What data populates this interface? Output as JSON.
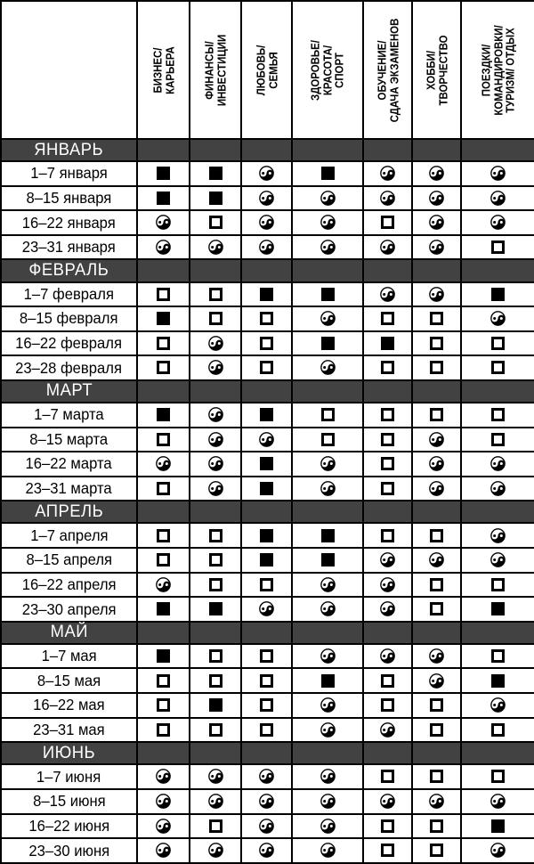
{
  "table": {
    "colors": {
      "month_band": "#424242",
      "border": "#000000",
      "month_text": "#ffffff",
      "cell_background": "#ffffff"
    },
    "columns": [
      {
        "id": "business",
        "lines": [
          "БИЗНЕС/",
          "КАРЬЕРА"
        ]
      },
      {
        "id": "finance",
        "lines": [
          "ФИНАНСЫ/",
          "ИНВЕСТИЦИИ"
        ]
      },
      {
        "id": "love",
        "lines": [
          "ЛЮБОВЬ/",
          "СЕМЬЯ"
        ]
      },
      {
        "id": "health",
        "lines": [
          "ЗДОРОВЬЕ/",
          "КРАСОТА/",
          "СПОРТ"
        ]
      },
      {
        "id": "education",
        "lines": [
          "ОБУЧЕНИЕ/",
          "СДАЧА ЭКЗАМЕНОВ"
        ]
      },
      {
        "id": "hobby",
        "lines": [
          "ХОББИ/",
          "ТВОРЧЕСТВО"
        ]
      },
      {
        "id": "trips",
        "lines": [
          "ПОЕЗДКИ/",
          "КОМАНДИРОВКИ/",
          "ТУРИЗМ/ ОТДЫХ"
        ]
      }
    ],
    "symbol_types": [
      "filled-square",
      "empty-square",
      "yin-yang"
    ],
    "sections": [
      {
        "month": "ЯНВАРЬ",
        "rows": [
          {
            "label": "1–7 января",
            "cells": [
              "filled-square",
              "filled-square",
              "yin-yang",
              "filled-square",
              "yin-yang",
              "yin-yang",
              "yin-yang"
            ]
          },
          {
            "label": "8–15 января",
            "cells": [
              "filled-square",
              "filled-square",
              "yin-yang",
              "yin-yang",
              "yin-yang",
              "yin-yang",
              "yin-yang"
            ]
          },
          {
            "label": "16–22 января",
            "cells": [
              "yin-yang",
              "empty-square",
              "yin-yang",
              "yin-yang",
              "empty-square",
              "yin-yang",
              "yin-yang"
            ]
          },
          {
            "label": "23–31 января",
            "cells": [
              "yin-yang",
              "yin-yang",
              "yin-yang",
              "yin-yang",
              "yin-yang",
              "yin-yang",
              "empty-square"
            ]
          }
        ]
      },
      {
        "month": "ФЕВРАЛЬ",
        "rows": [
          {
            "label": "1–7 февраля",
            "cells": [
              "empty-square",
              "empty-square",
              "filled-square",
              "filled-square",
              "yin-yang",
              "yin-yang",
              "filled-square"
            ]
          },
          {
            "label": "8–15 февраля",
            "cells": [
              "filled-square",
              "empty-square",
              "empty-square",
              "yin-yang",
              "empty-square",
              "empty-square",
              "yin-yang"
            ]
          },
          {
            "label": "16–22 февраля",
            "cells": [
              "empty-square",
              "yin-yang",
              "empty-square",
              "filled-square",
              "filled-square",
              "empty-square",
              "empty-square"
            ]
          },
          {
            "label": "23–28 февраля",
            "cells": [
              "empty-square",
              "yin-yang",
              "empty-square",
              "yin-yang",
              "empty-square",
              "empty-square",
              "empty-square"
            ]
          }
        ]
      },
      {
        "month": "МАРТ",
        "rows": [
          {
            "label": "1–7 марта",
            "cells": [
              "filled-square",
              "yin-yang",
              "filled-square",
              "empty-square",
              "empty-square",
              "empty-square",
              "empty-square"
            ]
          },
          {
            "label": "8–15 марта",
            "cells": [
              "empty-square",
              "yin-yang",
              "yin-yang",
              "empty-square",
              "empty-square",
              "yin-yang",
              "empty-square"
            ]
          },
          {
            "label": "16–22 марта",
            "cells": [
              "yin-yang",
              "yin-yang",
              "filled-square",
              "yin-yang",
              "empty-square",
              "yin-yang",
              "yin-yang"
            ]
          },
          {
            "label": "23–31 марта",
            "cells": [
              "empty-square",
              "yin-yang",
              "filled-square",
              "yin-yang",
              "empty-square",
              "yin-yang",
              "yin-yang"
            ]
          }
        ]
      },
      {
        "month": "АПРЕЛЬ",
        "rows": [
          {
            "label": "1–7 апреля",
            "cells": [
              "empty-square",
              "empty-square",
              "filled-square",
              "filled-square",
              "empty-square",
              "empty-square",
              "yin-yang"
            ]
          },
          {
            "label": "8–15 апреля",
            "cells": [
              "empty-square",
              "empty-square",
              "filled-square",
              "filled-square",
              "yin-yang",
              "yin-yang",
              "yin-yang"
            ]
          },
          {
            "label": "16–22 апреля",
            "cells": [
              "yin-yang",
              "empty-square",
              "empty-square",
              "yin-yang",
              "yin-yang",
              "empty-square",
              "empty-square"
            ]
          },
          {
            "label": "23–30 апреля",
            "cells": [
              "filled-square",
              "filled-square",
              "yin-yang",
              "yin-yang",
              "yin-yang",
              "empty-square",
              "filled-square"
            ]
          }
        ]
      },
      {
        "month": "МАЙ",
        "rows": [
          {
            "label": "1–7 мая",
            "cells": [
              "filled-square",
              "empty-square",
              "empty-square",
              "yin-yang",
              "yin-yang",
              "yin-yang",
              "empty-square"
            ]
          },
          {
            "label": "8–15 мая",
            "cells": [
              "empty-square",
              "empty-square",
              "empty-square",
              "filled-square",
              "empty-square",
              "yin-yang",
              "filled-square"
            ]
          },
          {
            "label": "16–22 мая",
            "cells": [
              "empty-square",
              "filled-square",
              "empty-square",
              "yin-yang",
              "empty-square",
              "empty-square",
              "yin-yang"
            ]
          },
          {
            "label": "23–31 мая",
            "cells": [
              "empty-square",
              "empty-square",
              "empty-square",
              "yin-yang",
              "yin-yang",
              "empty-square",
              "empty-square"
            ]
          }
        ]
      },
      {
        "month": "ИЮНЬ",
        "rows": [
          {
            "label": "1–7 июня",
            "cells": [
              "yin-yang",
              "yin-yang",
              "yin-yang",
              "yin-yang",
              "empty-square",
              "empty-square",
              "empty-square"
            ]
          },
          {
            "label": "8–15 июня",
            "cells": [
              "yin-yang",
              "yin-yang",
              "yin-yang",
              "yin-yang",
              "yin-yang",
              "yin-yang",
              "yin-yang"
            ]
          },
          {
            "label": "16–22 июня",
            "cells": [
              "yin-yang",
              "empty-square",
              "yin-yang",
              "yin-yang",
              "empty-square",
              "empty-square",
              "filled-square"
            ]
          },
          {
            "label": "23–30 июня",
            "cells": [
              "yin-yang",
              "yin-yang",
              "yin-yang",
              "yin-yang",
              "empty-square",
              "empty-square",
              "yin-yang"
            ]
          }
        ]
      }
    ]
  }
}
